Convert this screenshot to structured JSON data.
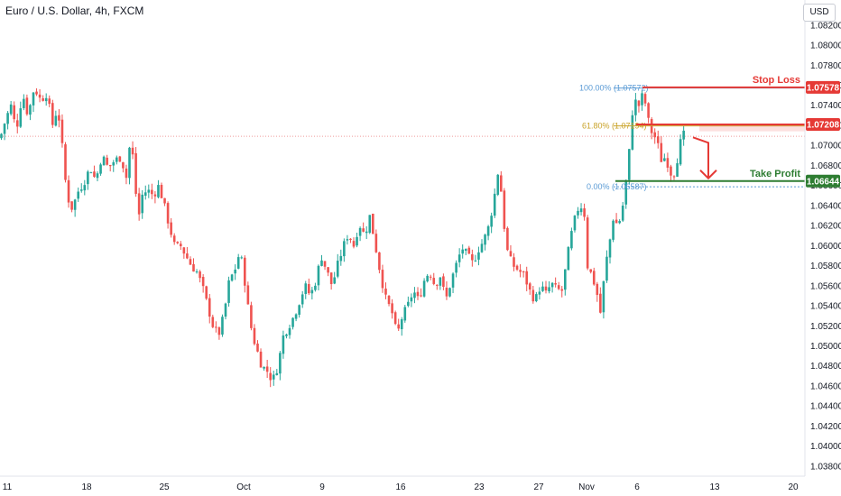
{
  "header": {
    "title": "Euro / U.S. Dollar, 4h, FXCM",
    "currency": "USD"
  },
  "colors": {
    "up": "#26a69a",
    "down": "#ef5350",
    "stop_loss": "#e53935",
    "take_profit": "#2e7d32",
    "fib_100": "#5b9bd5",
    "fib_618": "#c9a227",
    "fib_0": "#5b9bd5",
    "arrow": "#e53935",
    "ref_line": "#ef9a9a"
  },
  "chart_data": {
    "type": "candlestick",
    "title": "Euro / U.S. Dollar, 4h, FXCM",
    "ylim": [
      1.037,
      1.0845
    ],
    "y_ticks": [
      "1.08200",
      "1.08000",
      "1.07800",
      "1.07600",
      "1.07400",
      "1.07200",
      "1.07000",
      "1.06800",
      "1.06600",
      "1.06400",
      "1.06200",
      "1.06000",
      "1.05800",
      "1.05600",
      "1.05400",
      "1.05200",
      "1.05000",
      "1.04800",
      "1.04600",
      "1.04400",
      "1.04200",
      "1.04000",
      "1.03800"
    ],
    "x_ticks": [
      "11",
      "18",
      "25",
      "Oct",
      "9",
      "16",
      "23",
      "27",
      "Nov",
      "6",
      "13",
      "20"
    ],
    "reference_price": 1.0709,
    "levels": [
      {
        "name": "Stop Loss",
        "price": 1.07578,
        "tag": "1.07578"
      },
      {
        "name": "",
        "price": 1.07208,
        "tag": "1.07208"
      },
      {
        "name": "Take Profit",
        "price": 1.06644,
        "tag": "1.06644"
      }
    ],
    "fibonacci": [
      {
        "label": "100.00% (1.07572)",
        "price": 1.07572
      },
      {
        "label": "61.80% (1.07194)",
        "price": 1.07194
      },
      {
        "label": "0.00% (1.06587)",
        "price": 1.06587
      }
    ],
    "path": [
      [
        0,
        1.0707
      ],
      [
        6,
        1.0725
      ],
      [
        12,
        1.074
      ],
      [
        18,
        1.0715
      ],
      [
        25,
        1.0752
      ],
      [
        31,
        1.073
      ],
      [
        38,
        1.0758
      ],
      [
        45,
        1.0745
      ],
      [
        52,
        1.0752
      ],
      [
        58,
        1.072
      ],
      [
        64,
        1.0738
      ],
      [
        70,
        1.069
      ],
      [
        74,
        1.065
      ],
      [
        80,
        1.0637
      ],
      [
        87,
        1.0655
      ],
      [
        93,
        1.0663
      ],
      [
        100,
        1.0678
      ],
      [
        106,
        1.0665
      ],
      [
        113,
        1.069
      ],
      [
        120,
        1.0677
      ],
      [
        127,
        1.0685
      ],
      [
        134,
        1.0688
      ],
      [
        140,
        1.0668
      ],
      [
        145,
        1.071
      ],
      [
        149,
        1.067
      ],
      [
        153,
        1.0625
      ],
      [
        158,
        1.0652
      ],
      [
        164,
        1.0655
      ],
      [
        170,
        1.065
      ],
      [
        176,
        1.066
      ],
      [
        182,
        1.064
      ],
      [
        188,
        1.0618
      ],
      [
        194,
        1.0598
      ],
      [
        200,
        1.06
      ],
      [
        206,
        1.059
      ],
      [
        212,
        1.058
      ],
      [
        218,
        1.0574
      ],
      [
        224,
        1.056
      ],
      [
        230,
        1.054
      ],
      [
        236,
        1.052
      ],
      [
        242,
        1.051
      ],
      [
        248,
        1.053
      ],
      [
        254,
        1.0565
      ],
      [
        260,
        1.0575
      ],
      [
        266,
        1.0595
      ],
      [
        272,
        1.056
      ],
      [
        276,
        1.053
      ],
      [
        280,
        1.051
      ],
      [
        285,
        1.0495
      ],
      [
        290,
        1.048
      ],
      [
        296,
        1.0475
      ],
      [
        302,
        1.0465
      ],
      [
        308,
        1.048
      ],
      [
        314,
        1.051
      ],
      [
        320,
        1.052
      ],
      [
        326,
        1.053
      ],
      [
        332,
        1.0545
      ],
      [
        338,
        1.056
      ],
      [
        344,
        1.055
      ],
      [
        350,
        1.0565
      ],
      [
        356,
        1.059
      ],
      [
        362,
        1.0575
      ],
      [
        368,
        1.056
      ],
      [
        374,
        1.058
      ],
      [
        380,
        1.0598
      ],
      [
        386,
        1.0612
      ],
      [
        392,
        1.06
      ],
      [
        398,
        1.0622
      ],
      [
        404,
        1.061
      ],
      [
        410,
        1.063
      ],
      [
        416,
        1.06
      ],
      [
        422,
        1.057
      ],
      [
        428,
        1.0545
      ],
      [
        434,
        1.0535
      ],
      [
        440,
        1.051
      ],
      [
        446,
        1.053
      ],
      [
        452,
        1.054
      ],
      [
        458,
        1.0555
      ],
      [
        464,
        1.0545
      ],
      [
        470,
        1.0565
      ],
      [
        476,
        1.0575
      ],
      [
        482,
        1.056
      ],
      [
        488,
        1.057
      ],
      [
        494,
        1.0545
      ],
      [
        500,
        1.0565
      ],
      [
        506,
        1.0582
      ],
      [
        512,
        1.0598
      ],
      [
        518,
        1.059
      ],
      [
        524,
        1.0582
      ],
      [
        530,
        1.0596
      ],
      [
        536,
        1.0605
      ],
      [
        542,
        1.062
      ],
      [
        548,
        1.065
      ],
      [
        553,
        1.068
      ],
      [
        558,
        1.0625
      ],
      [
        563,
        1.059
      ],
      [
        569,
        1.058
      ],
      [
        575,
        1.0575
      ],
      [
        581,
        1.057
      ],
      [
        587,
        1.0555
      ],
      [
        593,
        1.0545
      ],
      [
        599,
        1.056
      ],
      [
        605,
        1.0552
      ],
      [
        611,
        1.0562
      ],
      [
        617,
        1.0556
      ],
      [
        623,
        1.0555
      ],
      [
        629,
        1.059
      ],
      [
        635,
        1.062
      ],
      [
        641,
        1.0638
      ],
      [
        647,
        1.064
      ],
      [
        651,
        1.058
      ],
      [
        656,
        1.057
      ],
      [
        661,
        1.0555
      ],
      [
        666,
        1.053
      ],
      [
        670,
        1.0575
      ],
      [
        675,
        1.06
      ],
      [
        680,
        1.063
      ],
      [
        684,
        1.062
      ],
      [
        688,
        1.0628
      ],
      [
        692,
        1.065
      ],
      [
        697,
        1.069
      ],
      [
        701,
        1.0735
      ],
      [
        705,
        1.0745
      ],
      [
        709,
        1.0738
      ],
      [
        713,
        1.0755
      ],
      [
        717,
        1.073
      ],
      [
        721,
        1.0715
      ],
      [
        725,
        1.071
      ],
      [
        729,
        1.07
      ],
      [
        733,
        1.0685
      ],
      [
        737,
        1.0688
      ],
      [
        741,
        1.068
      ],
      [
        745,
        1.0668
      ],
      [
        749,
        1.0678
      ],
      [
        753,
        1.07
      ],
      [
        757,
        1.071
      ],
      [
        761,
        1.0712
      ]
    ]
  }
}
